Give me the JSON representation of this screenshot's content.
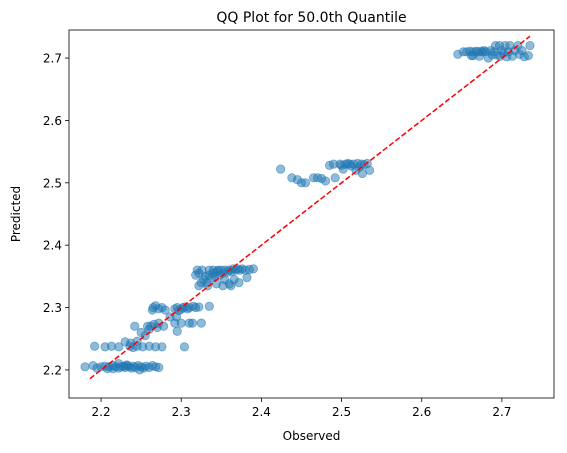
{
  "chart_data": {
    "type": "scatter",
    "title": "QQ Plot for 50.0th Quantile",
    "xlabel": "Observed",
    "ylabel": "Predicted",
    "xlim": [
      2.16,
      2.765
    ],
    "ylim": [
      2.155,
      2.745
    ],
    "xticks": [
      2.2,
      2.3,
      2.4,
      2.5,
      2.6,
      2.7
    ],
    "xtick_labels": [
      "2.2",
      "2.3",
      "2.4",
      "2.5",
      "2.6",
      "2.7"
    ],
    "yticks": [
      2.2,
      2.3,
      2.4,
      2.5,
      2.6,
      2.7
    ],
    "ytick_labels": [
      "2.2",
      "2.3",
      "2.4",
      "2.5",
      "2.6",
      "2.7"
    ],
    "grid": false,
    "point_color": "#1f77b4",
    "reference_line": {
      "from": [
        2.186,
        2.186
      ],
      "to": [
        2.735,
        2.735
      ],
      "color": "#ff0000",
      "style": "dashed"
    },
    "points": [
      [
        2.18,
        2.205
      ],
      [
        2.19,
        2.207
      ],
      [
        2.195,
        2.203
      ],
      [
        2.2,
        2.205
      ],
      [
        2.205,
        2.206
      ],
      [
        2.208,
        2.202
      ],
      [
        2.21,
        2.205
      ],
      [
        2.215,
        2.207
      ],
      [
        2.218,
        2.205
      ],
      [
        2.222,
        2.203
      ],
      [
        2.225,
        2.205
      ],
      [
        2.228,
        2.206
      ],
      [
        2.23,
        2.204
      ],
      [
        2.233,
        2.207
      ],
      [
        2.235,
        2.205
      ],
      [
        2.238,
        2.203
      ],
      [
        2.24,
        2.206
      ],
      [
        2.243,
        2.204
      ],
      [
        2.246,
        2.207
      ],
      [
        2.25,
        2.205
      ],
      [
        2.253,
        2.203
      ],
      [
        2.256,
        2.206
      ],
      [
        2.26,
        2.204
      ],
      [
        2.264,
        2.207
      ],
      [
        2.268,
        2.205
      ],
      [
        2.272,
        2.204
      ],
      [
        2.215,
        2.202
      ],
      [
        2.232,
        2.208
      ],
      [
        2.248,
        2.2
      ],
      [
        2.222,
        2.21
      ],
      [
        2.192,
        2.238
      ],
      [
        2.205,
        2.237
      ],
      [
        2.213,
        2.238
      ],
      [
        2.222,
        2.237
      ],
      [
        2.236,
        2.238
      ],
      [
        2.24,
        2.236
      ],
      [
        2.245,
        2.238
      ],
      [
        2.252,
        2.237
      ],
      [
        2.26,
        2.238
      ],
      [
        2.268,
        2.237
      ],
      [
        2.276,
        2.237
      ],
      [
        2.304,
        2.237
      ],
      [
        2.23,
        2.245
      ],
      [
        2.237,
        2.243
      ],
      [
        2.245,
        2.246
      ],
      [
        2.242,
        2.27
      ],
      [
        2.25,
        2.26
      ],
      [
        2.255,
        2.255
      ],
      [
        2.26,
        2.265
      ],
      [
        2.262,
        2.27
      ],
      [
        2.266,
        2.273
      ],
      [
        2.27,
        2.268
      ],
      [
        2.272,
        2.275
      ],
      [
        2.258,
        2.27
      ],
      [
        2.278,
        2.27
      ],
      [
        2.264,
        2.296
      ],
      [
        2.265,
        2.3
      ],
      [
        2.268,
        2.303
      ],
      [
        2.272,
        2.298
      ],
      [
        2.276,
        2.3
      ],
      [
        2.28,
        2.296
      ],
      [
        2.292,
        2.298
      ],
      [
        2.295,
        2.3
      ],
      [
        2.297,
        2.295
      ],
      [
        2.3,
        2.297
      ],
      [
        2.302,
        2.3
      ],
      [
        2.305,
        2.301
      ],
      [
        2.308,
        2.298
      ],
      [
        2.31,
        2.3
      ],
      [
        2.315,
        2.302
      ],
      [
        2.318,
        2.3
      ],
      [
        2.322,
        2.301
      ],
      [
        2.292,
        2.275
      ],
      [
        2.295,
        2.262
      ],
      [
        2.3,
        2.275
      ],
      [
        2.31,
        2.275
      ],
      [
        2.314,
        2.275
      ],
      [
        2.335,
        2.302
      ],
      [
        2.325,
        2.275
      ],
      [
        2.286,
        2.285
      ],
      [
        2.294,
        2.285
      ],
      [
        2.322,
        2.335
      ],
      [
        2.325,
        2.34
      ],
      [
        2.328,
        2.345
      ],
      [
        2.33,
        2.35
      ],
      [
        2.332,
        2.34
      ],
      [
        2.335,
        2.352
      ],
      [
        2.338,
        2.348
      ],
      [
        2.34,
        2.355
      ],
      [
        2.342,
        2.35
      ],
      [
        2.345,
        2.358
      ],
      [
        2.348,
        2.352
      ],
      [
        2.35,
        2.36
      ],
      [
        2.352,
        2.355
      ],
      [
        2.355,
        2.36
      ],
      [
        2.358,
        2.357
      ],
      [
        2.36,
        2.36
      ],
      [
        2.363,
        2.358
      ],
      [
        2.365,
        2.362
      ],
      [
        2.368,
        2.36
      ],
      [
        2.37,
        2.362
      ],
      [
        2.373,
        2.36
      ],
      [
        2.376,
        2.362
      ],
      [
        2.38,
        2.36
      ],
      [
        2.385,
        2.361
      ],
      [
        2.39,
        2.362
      ],
      [
        2.32,
        2.36
      ],
      [
        2.322,
        2.355
      ],
      [
        2.318,
        2.352
      ],
      [
        2.326,
        2.36
      ],
      [
        2.333,
        2.335
      ],
      [
        2.344,
        2.338
      ],
      [
        2.352,
        2.335
      ],
      [
        2.36,
        2.338
      ],
      [
        2.372,
        2.34
      ],
      [
        2.382,
        2.348
      ],
      [
        2.34,
        2.36
      ],
      [
        2.346,
        2.36
      ],
      [
        2.335,
        2.36
      ],
      [
        2.354,
        2.345
      ],
      [
        2.366,
        2.345
      ],
      [
        2.362,
        2.335
      ],
      [
        2.424,
        2.522
      ],
      [
        2.438,
        2.508
      ],
      [
        2.445,
        2.505
      ],
      [
        2.45,
        2.5
      ],
      [
        2.455,
        2.5
      ],
      [
        2.465,
        2.508
      ],
      [
        2.47,
        2.508
      ],
      [
        2.475,
        2.507
      ],
      [
        2.48,
        2.503
      ],
      [
        2.485,
        2.528
      ],
      [
        2.49,
        2.53
      ],
      [
        2.492,
        2.508
      ],
      [
        2.498,
        2.53
      ],
      [
        2.5,
        2.528
      ],
      [
        2.505,
        2.53
      ],
      [
        2.508,
        2.531
      ],
      [
        2.51,
        2.53
      ],
      [
        2.512,
        2.527
      ],
      [
        2.515,
        2.53
      ],
      [
        2.518,
        2.52
      ],
      [
        2.52,
        2.531
      ],
      [
        2.522,
        2.525
      ],
      [
        2.525,
        2.53
      ],
      [
        2.528,
        2.529
      ],
      [
        2.532,
        2.531
      ],
      [
        2.535,
        2.52
      ],
      [
        2.526,
        2.515
      ],
      [
        2.502,
        2.522
      ],
      [
        2.645,
        2.706
      ],
      [
        2.652,
        2.71
      ],
      [
        2.656,
        2.71
      ],
      [
        2.66,
        2.711
      ],
      [
        2.662,
        2.704
      ],
      [
        2.664,
        2.71
      ],
      [
        2.668,
        2.711
      ],
      [
        2.67,
        2.71
      ],
      [
        2.672,
        2.703
      ],
      [
        2.674,
        2.711
      ],
      [
        2.676,
        2.71
      ],
      [
        2.678,
        2.712
      ],
      [
        2.68,
        2.71
      ],
      [
        2.683,
        2.7
      ],
      [
        2.686,
        2.712
      ],
      [
        2.69,
        2.71
      ],
      [
        2.692,
        2.72
      ],
      [
        2.694,
        2.705
      ],
      [
        2.697,
        2.72
      ],
      [
        2.7,
        2.712
      ],
      [
        2.702,
        2.708
      ],
      [
        2.704,
        2.72
      ],
      [
        2.706,
        2.702
      ],
      [
        2.708,
        2.71
      ],
      [
        2.71,
        2.72
      ],
      [
        2.713,
        2.703
      ],
      [
        2.716,
        2.712
      ],
      [
        2.72,
        2.72
      ],
      [
        2.722,
        2.706
      ],
      [
        2.725,
        2.712
      ],
      [
        2.728,
        2.702
      ],
      [
        2.733,
        2.704
      ],
      [
        2.735,
        2.72
      ],
      [
        2.698,
        2.703
      ],
      [
        2.688,
        2.705
      ],
      [
        2.664,
        2.704
      ]
    ]
  }
}
